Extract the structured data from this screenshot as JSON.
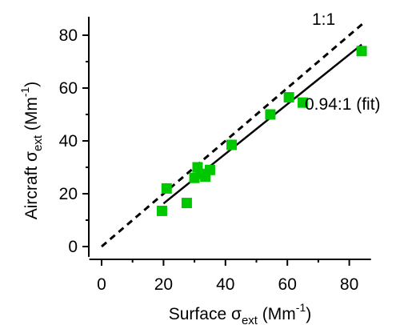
{
  "chart_data": {
    "type": "scatter",
    "title": "",
    "xlabel": {
      "prefix": "Surface ",
      "symbol": "σ",
      "subscript": "ext",
      "unit_open": " (Mm",
      "unit_exp": "-1",
      "unit_close": ")"
    },
    "ylabel": {
      "prefix": "Aircraft ",
      "symbol": "σ",
      "subscript": "ext",
      "unit_open": " (Mm",
      "unit_exp": "-1",
      "unit_close": ")"
    },
    "xlim": [
      -5,
      87
    ],
    "ylim": [
      -3,
      87
    ],
    "xticks": [
      0,
      20,
      40,
      60,
      80
    ],
    "yticks": [
      0,
      20,
      40,
      60,
      80
    ],
    "grid": false,
    "marker_color": "#00c800",
    "series": [
      {
        "points": [
          {
            "x": 19.5,
            "y": 13.5
          },
          {
            "x": 21.0,
            "y": 22.0
          },
          {
            "x": 27.5,
            "y": 16.5
          },
          {
            "x": 30.0,
            "y": 26.0
          },
          {
            "x": 31.0,
            "y": 30.0
          },
          {
            "x": 32.0,
            "y": 27.5
          },
          {
            "x": 33.5,
            "y": 26.5
          },
          {
            "x": 35.0,
            "y": 29.0
          },
          {
            "x": 42.0,
            "y": 38.5
          },
          {
            "x": 54.5,
            "y": 50.0
          },
          {
            "x": 60.5,
            "y": 56.5
          },
          {
            "x": 65.0,
            "y": 54.5
          },
          {
            "x": 84.0,
            "y": 74.0
          }
        ]
      }
    ],
    "reference_line": {
      "label": "1:1",
      "slope": 1.0,
      "from": 0,
      "to": 85,
      "style": "dashed"
    },
    "fit_line": {
      "label": "0.94:1 (fit)",
      "slope": 0.94,
      "intercept": -2.5,
      "from": 20,
      "to": 84,
      "style": "solid"
    }
  }
}
